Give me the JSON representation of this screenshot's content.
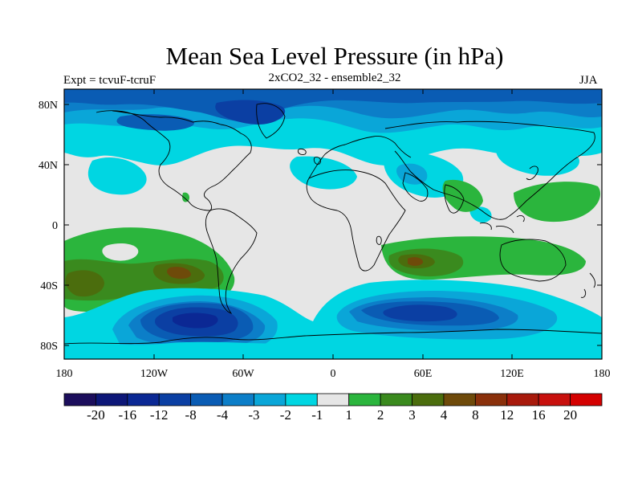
{
  "title": "Mean Sea Level Pressure (in hPa)",
  "left_label": "Expt = tcvuF-tcruF",
  "center_label": "2xCO2_32 - ensemble2_32",
  "right_label": "JJA",
  "y_ticks": [
    "80N",
    "40N",
    "0",
    "40S",
    "80S"
  ],
  "x_ticks": [
    "180",
    "120W",
    "60W",
    "0",
    "60E",
    "120E",
    "180"
  ],
  "colorbar": {
    "labels": [
      "-20",
      "-16",
      "-12",
      "-8",
      "-4",
      "-3",
      "-2",
      "-1",
      "1",
      "2",
      "3",
      "4",
      "8",
      "12",
      "16",
      "20"
    ],
    "colors": [
      "#1c0e5c",
      "#0d1778",
      "#0b2894",
      "#0b3fa3",
      "#0a5cb4",
      "#0c7ec8",
      "#0aa6d8",
      "#00d6e2",
      "#e6e6e6",
      "#2bb53d",
      "#3a8a1e",
      "#4b6d0d",
      "#6e4a0a",
      "#8a300b",
      "#a81a0c",
      "#c8100d",
      "#d40000"
    ]
  },
  "chart_data": {
    "type": "heatmap",
    "title": "Mean Sea Level Pressure (in hPa)",
    "units": "hPa",
    "x_range": [
      -180,
      180
    ],
    "y_range": [
      -90,
      90
    ],
    "levels": [
      -20,
      -16,
      -12,
      -8,
      -4,
      -3,
      -2,
      -1,
      1,
      2,
      3,
      4,
      8,
      12,
      16,
      20
    ],
    "features": [
      {
        "region": "Arctic / high northern latitudes",
        "value_range": "-4 to -8"
      },
      {
        "region": "Southern Ocean south of South America",
        "value_range": "-4 to -12"
      },
      {
        "region": "Southern Ocean south of Africa / Indian Ocean",
        "value_range": "-3 to -8"
      },
      {
        "region": "South Pacific subtropics",
        "value_range": "2 to 4"
      },
      {
        "region": "South Indian Ocean / Australia",
        "value_range": "2 to 4"
      },
      {
        "region": "Western North Pacific",
        "value_range": "1 to 2"
      },
      {
        "region": "North Pacific / North Atlantic mid-latitudes",
        "value_range": "-1 to -2"
      }
    ]
  }
}
